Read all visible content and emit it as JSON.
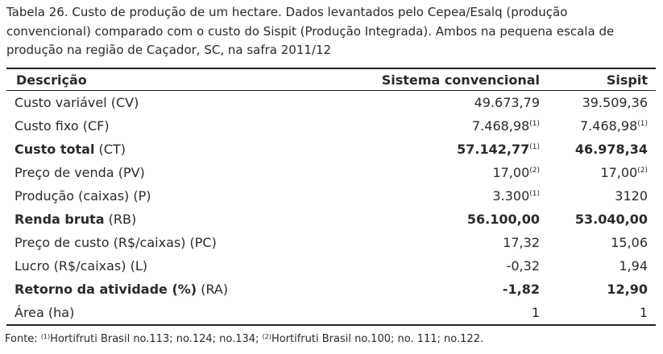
{
  "caption_lines": [
    "Tabela 26. Custo de produção de um hectare. Dados levantados pelo Cepea/Esalq (produção",
    "convencional) comparado com o custo do Sispit (Produção Integrada). Ambos na pequena escala de",
    "produção na região de Caçador, SC, na safra 2011/12"
  ],
  "table": {
    "header": [
      "Descrição",
      "Sistema convencional",
      "Sispit"
    ],
    "rows": [
      {
        "label": "Custo variável (CV)",
        "cells": [
          "49.673,79",
          "39.509,36"
        ]
      },
      {
        "label": "Custo fixo (CF)",
        "cells": [
          {
            "text": "7.468,98",
            "note": "(1)"
          },
          {
            "text": "7.468,98",
            "note": "(1)"
          }
        ]
      },
      {
        "label": "Custo total",
        "label_suffix": "(CT)",
        "bold": true,
        "cells": [
          {
            "text": "57.142,77",
            "note": "(1)"
          },
          "46.978,34"
        ]
      },
      {
        "label": "Preço de venda (PV)",
        "cells": [
          {
            "text": "17,00",
            "note": "(2)"
          },
          {
            "text": "17,00",
            "note": "(2)"
          }
        ]
      },
      {
        "label": "Produção (caixas) (P)",
        "cells": [
          {
            "text": "3.300",
            "note": "(1)"
          },
          "3120"
        ]
      },
      {
        "label": "Renda bruta",
        "label_suffix": "(RB)",
        "bold": true,
        "cells": [
          "56.100,00",
          "53.040,00"
        ]
      },
      {
        "label": "Preço de custo (R$/caixas) (PC)",
        "cells": [
          "17,32",
          "15,06"
        ]
      },
      {
        "label": "Lucro (R$/caixas) (L)",
        "cells": [
          "-0,32",
          "1,94"
        ]
      },
      {
        "label": "Retorno da atividade (%)",
        "label_suffix": "(RA)",
        "bold": true,
        "cells": [
          "-1,82",
          "12,90"
        ]
      },
      {
        "label": "Área (ha)",
        "cells": [
          "1",
          "1"
        ]
      }
    ]
  },
  "footnote": {
    "label": "Fonte:",
    "parts": [
      {
        "note": "(1)",
        "text": "Hortifruti Brasil no.113; no.124; no.134;"
      },
      {
        "note": "(2)",
        "text": "Hortifruti Brasil no.100; no. 111; no.122."
      }
    ]
  }
}
